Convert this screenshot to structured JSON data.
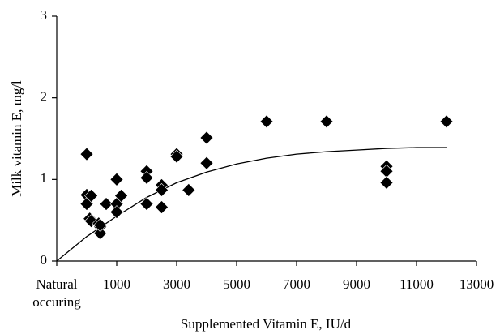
{
  "chart_data": {
    "type": "scatter",
    "x_label": "Supplemented Vitamin E, IU/d",
    "y_label": "Milk vitamin E, mg/l",
    "xlim": [
      -1000,
      13000
    ],
    "xticks": [
      {
        "value": -1000,
        "label": "Natural occuring"
      },
      1000,
      3000,
      5000,
      7000,
      9000,
      11000,
      13000
    ],
    "ylim": [
      0,
      3
    ],
    "yticks": [
      0,
      1,
      2,
      3
    ],
    "grid": false,
    "color": "#000000",
    "points": {
      "x": [
        0,
        0,
        0,
        150,
        100,
        150,
        400,
        450,
        450,
        450,
        650,
        1000,
        1000,
        1000,
        1150,
        2000,
        2000,
        2000,
        2500,
        2500,
        2500,
        3000,
        3000,
        3400,
        4000,
        4000,
        6000,
        8000,
        10000,
        10000,
        10000,
        12000
      ],
      "y": [
        1.31,
        0.81,
        0.7,
        0.8,
        0.52,
        0.49,
        0.46,
        0.42,
        0.34,
        0.44,
        0.7,
        1.0,
        0.7,
        0.6,
        0.8,
        1.1,
        1.02,
        0.7,
        0.93,
        0.87,
        0.66,
        1.31,
        1.28,
        0.87,
        1.51,
        1.2,
        1.71,
        1.71,
        1.16,
        1.1,
        0.96,
        1.71
      ]
    },
    "curve": {
      "x": [
        -1000,
        0,
        1000,
        2000,
        3000,
        4000,
        5000,
        6000,
        7000,
        8000,
        9000,
        10000,
        11000,
        12000
      ],
      "y": [
        0,
        0.3,
        0.55,
        0.78,
        0.96,
        1.09,
        1.19,
        1.26,
        1.31,
        1.34,
        1.36,
        1.38,
        1.39,
        1.39
      ]
    }
  }
}
